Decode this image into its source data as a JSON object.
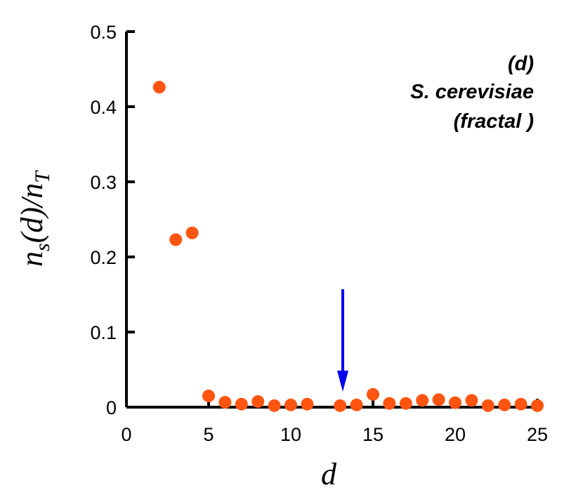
{
  "chart_data": {
    "type": "scatter",
    "xlabel": "d",
    "ylabel": [
      "n",
      "s",
      "(d)/n",
      "T"
    ],
    "annotations": [
      "(d)",
      "S. cerevisiae",
      "(fractal )"
    ],
    "x": [
      2,
      3,
      4,
      5,
      6,
      7,
      8,
      9,
      10,
      11,
      13,
      14,
      15,
      16,
      17,
      18,
      19,
      20,
      21,
      22,
      23,
      24,
      25
    ],
    "values": [
      0.426,
      0.223,
      0.232,
      0.015,
      0.0065,
      0.004,
      0.0075,
      0.002,
      0.003,
      0.004,
      0.002,
      0.003,
      0.017,
      0.005,
      0.005,
      0.009,
      0.01,
      0.006,
      0.009,
      0.002,
      0.003,
      0.004,
      0.002
    ],
    "color": "#ff5511",
    "xlim": [
      0,
      25
    ],
    "xticks": [
      0,
      5,
      10,
      15,
      20,
      25
    ],
    "ylim": [
      0,
      0.5
    ],
    "yticks": [
      0,
      0.1,
      0.2,
      0.3,
      0.4,
      0.5
    ]
  }
}
